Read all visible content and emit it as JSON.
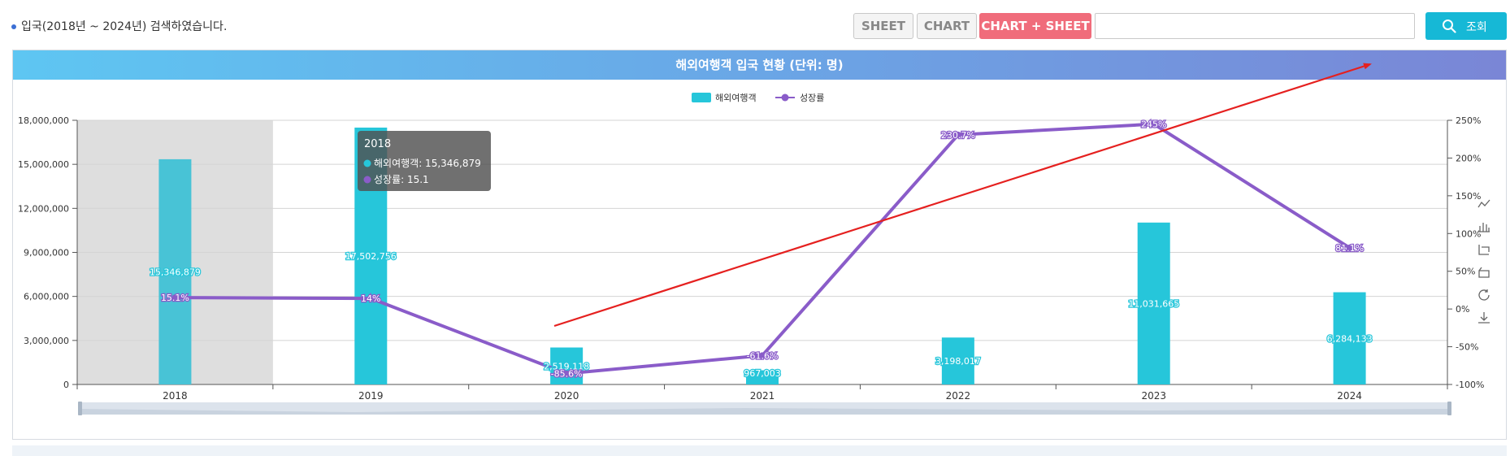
{
  "search_info": "입국(2018년 ~ 2024년) 검색하였습니다.",
  "toolbar": {
    "sheet_label": "SHEET",
    "chart_label": "CHART",
    "chart_sheet_label": "CHART + SHEET",
    "search_label": "조회",
    "search_value": ""
  },
  "panel_title": "해외여행객 입국 현황 (단위: 명)",
  "tooltip": {
    "title": "2018",
    "line1": "해외여행객: 15,346,879",
    "line2": "성장률: 15.1"
  },
  "colors": {
    "bar": "#26c6da",
    "bar_selected": "#48c3d6",
    "line": "#8a5cc9",
    "arrow": "#e5201f",
    "highlight": "#dedede"
  },
  "toolbox_icons": [
    "line-chart-icon",
    "bar-chart-icon",
    "stack-icon",
    "tiled-icon",
    "restore-icon",
    "download-icon"
  ],
  "chart_data": {
    "type": "bar",
    "categories": [
      "2018",
      "2019",
      "2020",
      "2021",
      "2022",
      "2023",
      "2024"
    ],
    "series": [
      {
        "name": "해외여행객",
        "type": "bar",
        "values": [
          15346879,
          17502756,
          2519118,
          967003,
          3198017,
          11031665,
          6284133
        ],
        "labels": [
          "15,346,879",
          "17,502,756",
          "2,519,118",
          "967,003",
          "3,198,017",
          "11,031,665",
          "6,284,133"
        ]
      },
      {
        "name": "성장률",
        "type": "line",
        "values": [
          15.1,
          14,
          -85.6,
          -61.6,
          230.7,
          245,
          81.1
        ],
        "labels": [
          "15.1%",
          "14%",
          "-85.6%",
          "-61.6%",
          "230.7%",
          "245%",
          "81.1%"
        ]
      }
    ],
    "y_left": {
      "range": [
        0,
        18000000
      ],
      "ticks": [
        "0",
        "3,000,000",
        "6,000,000",
        "9,000,000",
        "12,000,000",
        "15,000,000",
        "18,000,000"
      ]
    },
    "y_right": {
      "range": [
        -100,
        250
      ],
      "ticks": [
        "-100%",
        "-50%",
        "0%",
        "50%",
        "100%",
        "150%",
        "200%",
        "250%"
      ]
    },
    "grid": true,
    "legend": "top-center",
    "highlighted_category": "2018"
  }
}
